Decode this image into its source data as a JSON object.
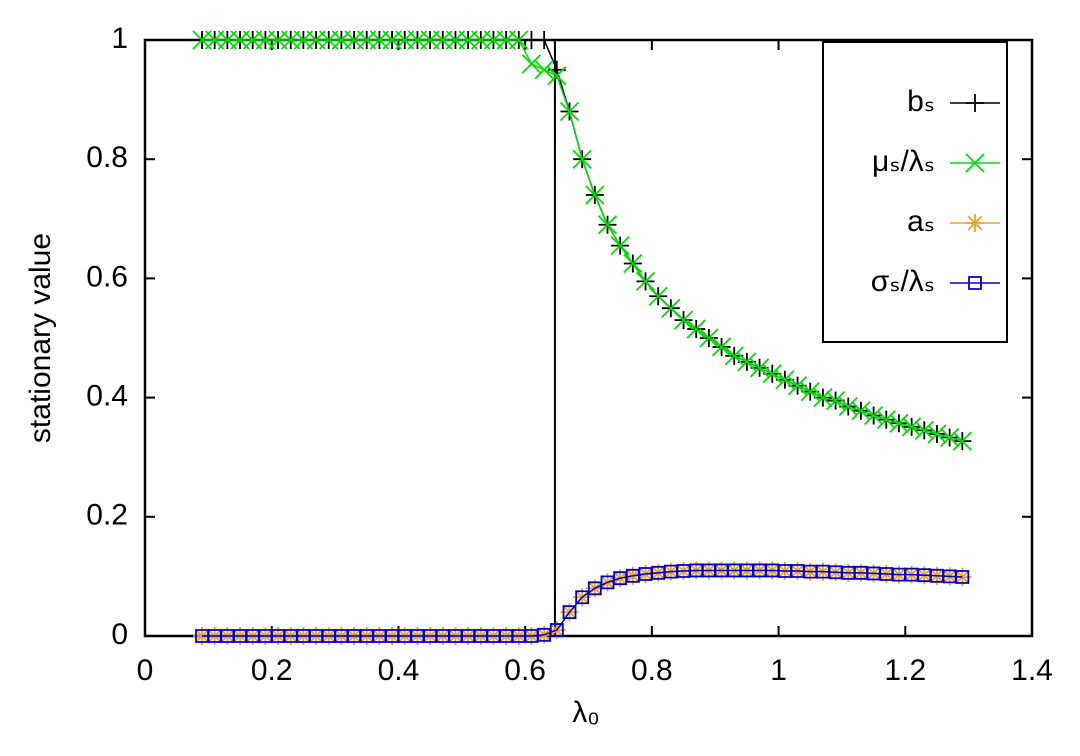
{
  "chart_data": {
    "type": "linespoints",
    "xlabel": "λ₀",
    "ylabel": "stationary value",
    "x": [
      0.09,
      0.11,
      0.13,
      0.15,
      0.17,
      0.19,
      0.21,
      0.23,
      0.25,
      0.27,
      0.29,
      0.31,
      0.33,
      0.35,
      0.37,
      0.39,
      0.41,
      0.43,
      0.45,
      0.47,
      0.49,
      0.51,
      0.53,
      0.55,
      0.57,
      0.59,
      0.61,
      0.63,
      0.65,
      0.67,
      0.69,
      0.71,
      0.73,
      0.75,
      0.77,
      0.79,
      0.81,
      0.83,
      0.85,
      0.87,
      0.89,
      0.91,
      0.93,
      0.95,
      0.97,
      0.99,
      1.01,
      1.03,
      1.05,
      1.07,
      1.09,
      1.11,
      1.13,
      1.15,
      1.17,
      1.19,
      1.21,
      1.23,
      1.25,
      1.27,
      1.29
    ],
    "series": [
      {
        "name": "bₛ",
        "color": "#000000",
        "marker": "plus",
        "values": [
          1,
          1,
          1,
          1,
          1,
          1,
          1,
          1,
          1,
          1,
          1,
          1,
          1,
          1,
          1,
          1,
          1,
          1,
          1,
          1,
          1,
          1,
          1,
          1,
          1,
          1,
          1,
          1,
          0.95,
          0.88,
          0.8,
          0.74,
          0.69,
          0.655,
          0.625,
          0.595,
          0.57,
          0.55,
          0.53,
          0.515,
          0.5,
          0.485,
          0.47,
          0.46,
          0.45,
          0.44,
          0.43,
          0.42,
          0.41,
          0.4,
          0.395,
          0.385,
          0.378,
          0.37,
          0.363,
          0.357,
          0.351,
          0.345,
          0.339,
          0.333,
          0.327
        ]
      },
      {
        "name": "μₛ/λₛ",
        "color": "#00e000",
        "marker": "cross",
        "values": [
          1,
          1,
          1,
          1,
          1,
          1,
          1,
          1,
          1,
          1,
          1,
          1,
          1,
          1,
          1,
          1,
          1,
          1,
          1,
          1,
          1,
          1,
          1,
          1,
          1,
          1,
          0.96,
          0.95,
          0.94,
          0.88,
          0.8,
          0.74,
          0.69,
          0.655,
          0.625,
          0.595,
          0.57,
          0.55,
          0.53,
          0.515,
          0.5,
          0.485,
          0.47,
          0.46,
          0.45,
          0.44,
          0.43,
          0.42,
          0.41,
          0.4,
          0.395,
          0.385,
          0.378,
          0.37,
          0.363,
          0.357,
          0.351,
          0.345,
          0.339,
          0.333,
          0.327
        ]
      },
      {
        "name": "aₛ",
        "color": "#f0a030",
        "marker": "star",
        "values": [
          0,
          0,
          0,
          0,
          0,
          0,
          0,
          0,
          0,
          0,
          0,
          0,
          0,
          0,
          0,
          0,
          0,
          0,
          0,
          0,
          0,
          0,
          0,
          0,
          0,
          0,
          0,
          0.002,
          0.01,
          0.04,
          0.065,
          0.08,
          0.09,
          0.097,
          0.101,
          0.104,
          0.106,
          0.108,
          0.109,
          0.11,
          0.11,
          0.11,
          0.11,
          0.11,
          0.11,
          0.11,
          0.109,
          0.109,
          0.108,
          0.108,
          0.107,
          0.106,
          0.106,
          0.105,
          0.104,
          0.103,
          0.103,
          0.102,
          0.101,
          0.1,
          0.099
        ]
      },
      {
        "name": "σₛ/λₛ",
        "color": "#0000d0",
        "marker": "square",
        "values": [
          0,
          0,
          0,
          0,
          0,
          0,
          0,
          0,
          0,
          0,
          0,
          0,
          0,
          0,
          0,
          0,
          0,
          0,
          0,
          0,
          0,
          0,
          0,
          0,
          0,
          0,
          0,
          0.002,
          0.01,
          0.04,
          0.065,
          0.08,
          0.09,
          0.097,
          0.101,
          0.104,
          0.106,
          0.108,
          0.109,
          0.11,
          0.11,
          0.11,
          0.11,
          0.11,
          0.11,
          0.11,
          0.109,
          0.109,
          0.108,
          0.108,
          0.107,
          0.106,
          0.106,
          0.105,
          0.104,
          0.103,
          0.103,
          0.102,
          0.101,
          0.1,
          0.099
        ]
      }
    ],
    "vline_x": 0.647,
    "xlim": [
      0,
      1.4
    ],
    "xticks": [
      0,
      0.2,
      0.4,
      0.6,
      0.8,
      1,
      1.2,
      1.4
    ],
    "ylim": [
      0,
      1
    ],
    "yticks": [
      0,
      0.2,
      0.4,
      0.6,
      0.8,
      1
    ],
    "legend": "upper right",
    "grid": false
  }
}
